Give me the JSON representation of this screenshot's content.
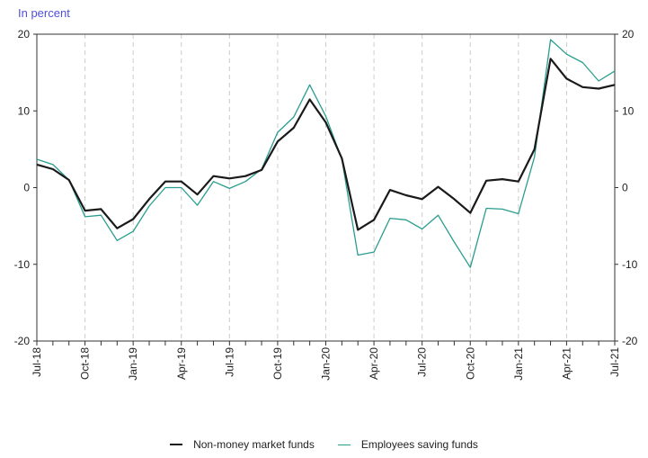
{
  "chart_data": {
    "type": "line",
    "unit_label": "In percent",
    "x_ticks": [
      "Jul-18",
      "Oct-18",
      "Jan-19",
      "Apr-19",
      "Jul-19",
      "Oct-19",
      "Jan-20",
      "Apr-20",
      "Jul-20",
      "Oct-20",
      "Jan-21",
      "Apr-21",
      "Jul-21"
    ],
    "x": [
      "Jul-18",
      "Aug-18",
      "Sep-18",
      "Oct-18",
      "Nov-18",
      "Dec-18",
      "Jan-19",
      "Feb-19",
      "Mar-19",
      "Apr-19",
      "May-19",
      "Jun-19",
      "Jul-19",
      "Aug-19",
      "Sep-19",
      "Oct-19",
      "Nov-19",
      "Dec-19",
      "Jan-20",
      "Feb-20",
      "Mar-20",
      "Apr-20",
      "May-20",
      "Jun-20",
      "Jul-20",
      "Aug-20",
      "Sep-20",
      "Oct-20",
      "Nov-20",
      "Dec-20",
      "Jan-21",
      "Feb-21",
      "Mar-21",
      "Apr-21",
      "May-21",
      "Jun-21",
      "Jul-21"
    ],
    "ylim": [
      -20,
      20
    ],
    "y_ticks": [
      -20,
      -10,
      0,
      10,
      20
    ],
    "grid": "dashed vertical at labelled months",
    "secondary_y_axis": "mirror of left axis",
    "legend_position": "bottom-center",
    "series": [
      {
        "name": "Non-money market funds",
        "color": "#1a1a1a",
        "values": [
          3.0,
          2.4,
          1.0,
          -3.0,
          -2.8,
          -5.3,
          -4.1,
          -1.5,
          0.8,
          0.8,
          -0.9,
          1.5,
          1.2,
          1.5,
          2.3,
          6.0,
          7.8,
          11.5,
          8.5,
          3.8,
          -5.5,
          -4.2,
          -0.3,
          -1.0,
          -1.5,
          0.1,
          -1.5,
          -3.3,
          0.9,
          1.1,
          0.8,
          5.0,
          16.8,
          14.2,
          13.1,
          12.9,
          13.4
        ]
      },
      {
        "name": "Employees saving funds",
        "color": "#2a9d8f",
        "values": [
          3.7,
          3.0,
          1.0,
          -3.8,
          -3.6,
          -6.9,
          -5.7,
          -2.4,
          0.0,
          0.0,
          -2.3,
          0.8,
          -0.1,
          0.8,
          2.4,
          7.2,
          9.2,
          13.4,
          9.3,
          3.7,
          -8.8,
          -8.4,
          -4.0,
          -4.2,
          -5.4,
          -3.6,
          -7.1,
          -10.4,
          -2.7,
          -2.8,
          -3.4,
          4.0,
          19.3,
          17.4,
          16.3,
          13.9,
          15.2
        ]
      }
    ]
  }
}
